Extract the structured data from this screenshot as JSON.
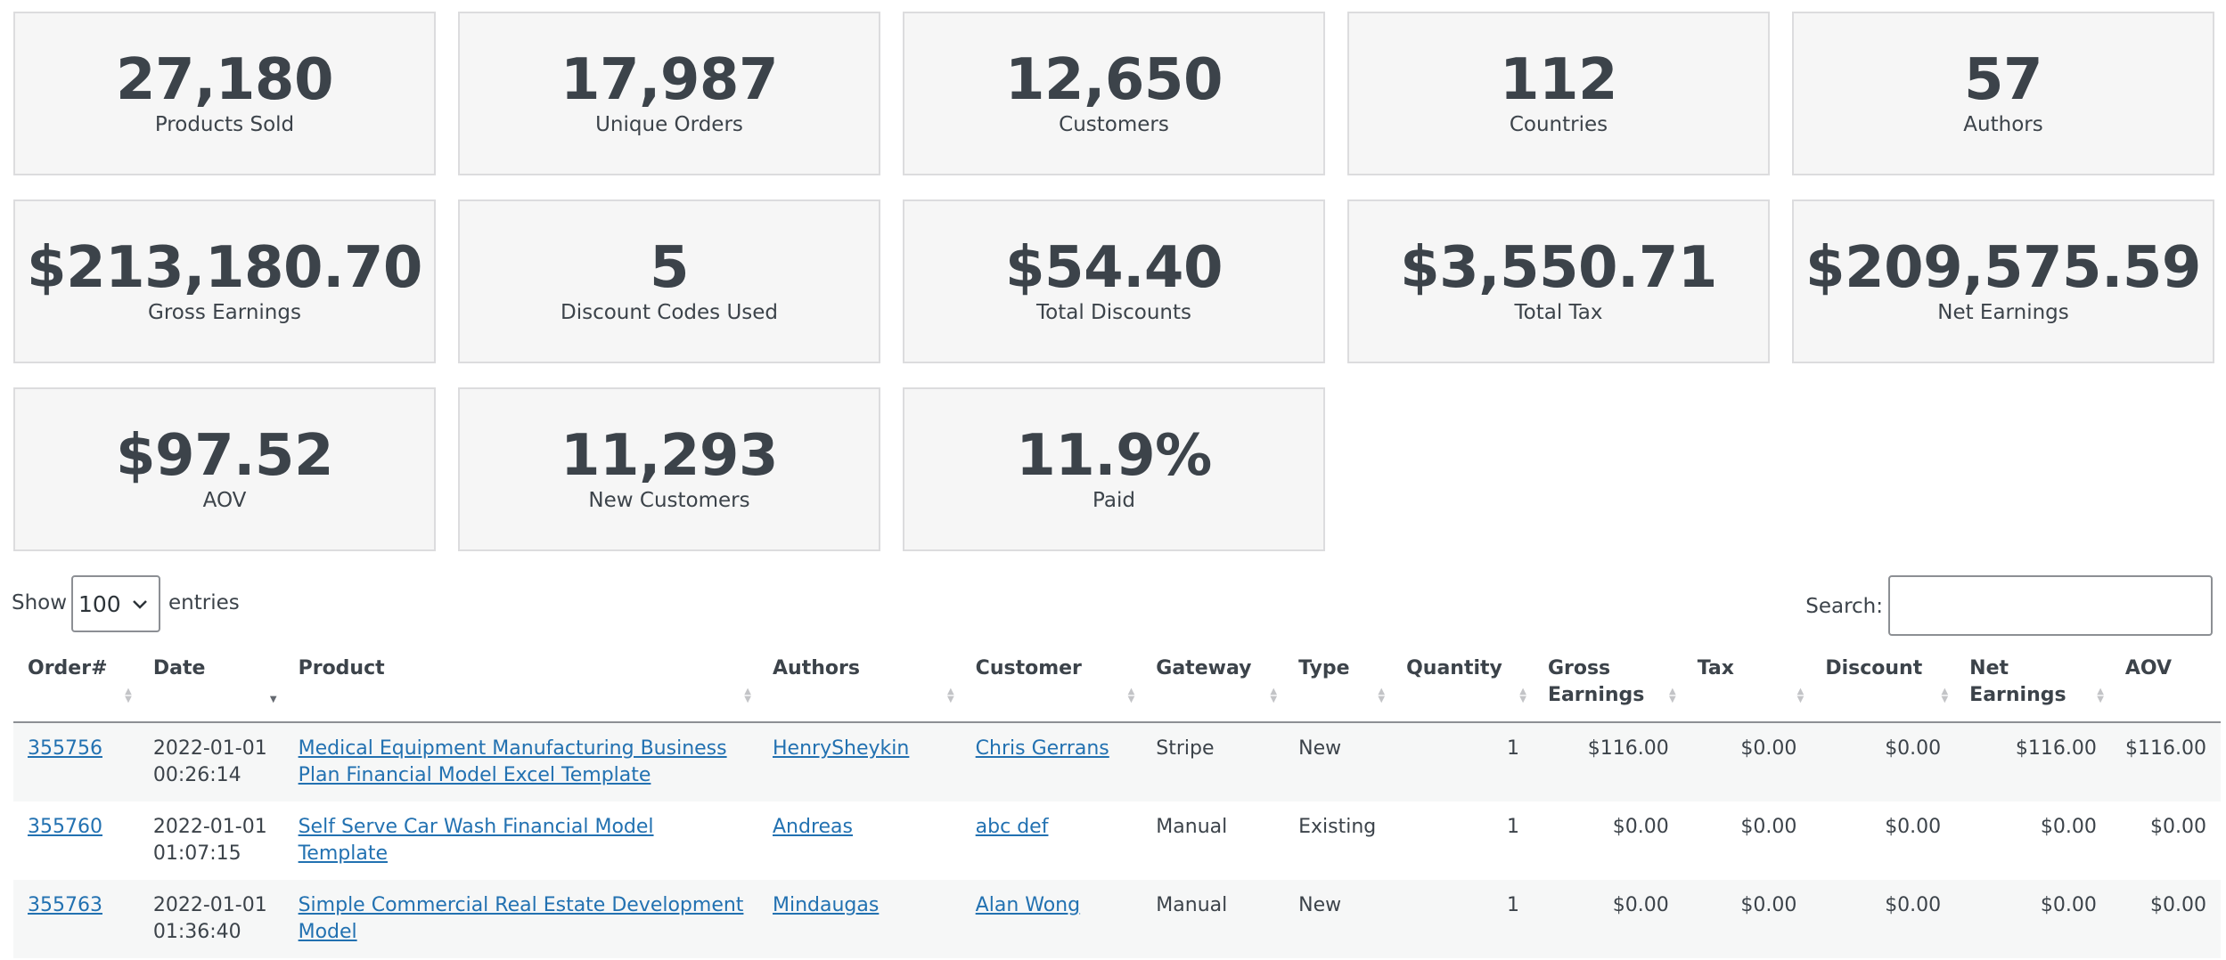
{
  "stats": [
    {
      "value": "27,180",
      "label": "Products Sold"
    },
    {
      "value": "17,987",
      "label": "Unique Orders"
    },
    {
      "value": "12,650",
      "label": "Customers"
    },
    {
      "value": "112",
      "label": "Countries"
    },
    {
      "value": "57",
      "label": "Authors"
    },
    {
      "value": "$213,180.70",
      "label": "Gross Earnings"
    },
    {
      "value": "5",
      "label": "Discount Codes Used"
    },
    {
      "value": "$54.40",
      "label": "Total Discounts"
    },
    {
      "value": "$3,550.71",
      "label": "Total Tax"
    },
    {
      "value": "$209,575.59",
      "label": "Net Earnings"
    },
    {
      "value": "$97.52",
      "label": "AOV"
    },
    {
      "value": "11,293",
      "label": "New Customers"
    },
    {
      "value": "11.9%",
      "label": "Paid"
    }
  ],
  "controls": {
    "show_label": "Show",
    "entries_value": "100",
    "entries_label": "entries",
    "search_label": "Search:",
    "search_value": ""
  },
  "table": {
    "columns": [
      "Order#",
      "Date",
      "Product",
      "Authors",
      "Customer",
      "Gateway",
      "Type",
      "Quantity",
      "Gross Earnings",
      "Tax",
      "Discount",
      "Net Earnings",
      "AOV"
    ],
    "rows": [
      {
        "order": "355756",
        "date": "2022-01-01 00:26:14",
        "product": "Medical Equipment Manufacturing Business Plan Financial Model Excel Template",
        "author": "HenrySheykin",
        "customer": "Chris Gerrans",
        "gateway": "Stripe",
        "type": "New",
        "quantity": "1",
        "gross": "$116.00",
        "tax": "$0.00",
        "discount": "$0.00",
        "net": "$116.00",
        "aov": "$116.00"
      },
      {
        "order": "355760",
        "date": "2022-01-01 01:07:15",
        "product": "Self Serve Car Wash Financial Model Template",
        "author": "Andreas",
        "customer": "abc def",
        "gateway": "Manual",
        "type": "Existing",
        "quantity": "1",
        "gross": "$0.00",
        "tax": "$0.00",
        "discount": "$0.00",
        "net": "$0.00",
        "aov": "$0.00"
      },
      {
        "order": "355763",
        "date": "2022-01-01 01:36:40",
        "product": "Simple Commercial Real Estate Development Model",
        "author": "Mindaugas",
        "customer": "Alan Wong",
        "gateway": "Manual",
        "type": "New",
        "quantity": "1",
        "gross": "$0.00",
        "tax": "$0.00",
        "discount": "$0.00",
        "net": "$0.00",
        "aov": "$0.00"
      }
    ]
  }
}
